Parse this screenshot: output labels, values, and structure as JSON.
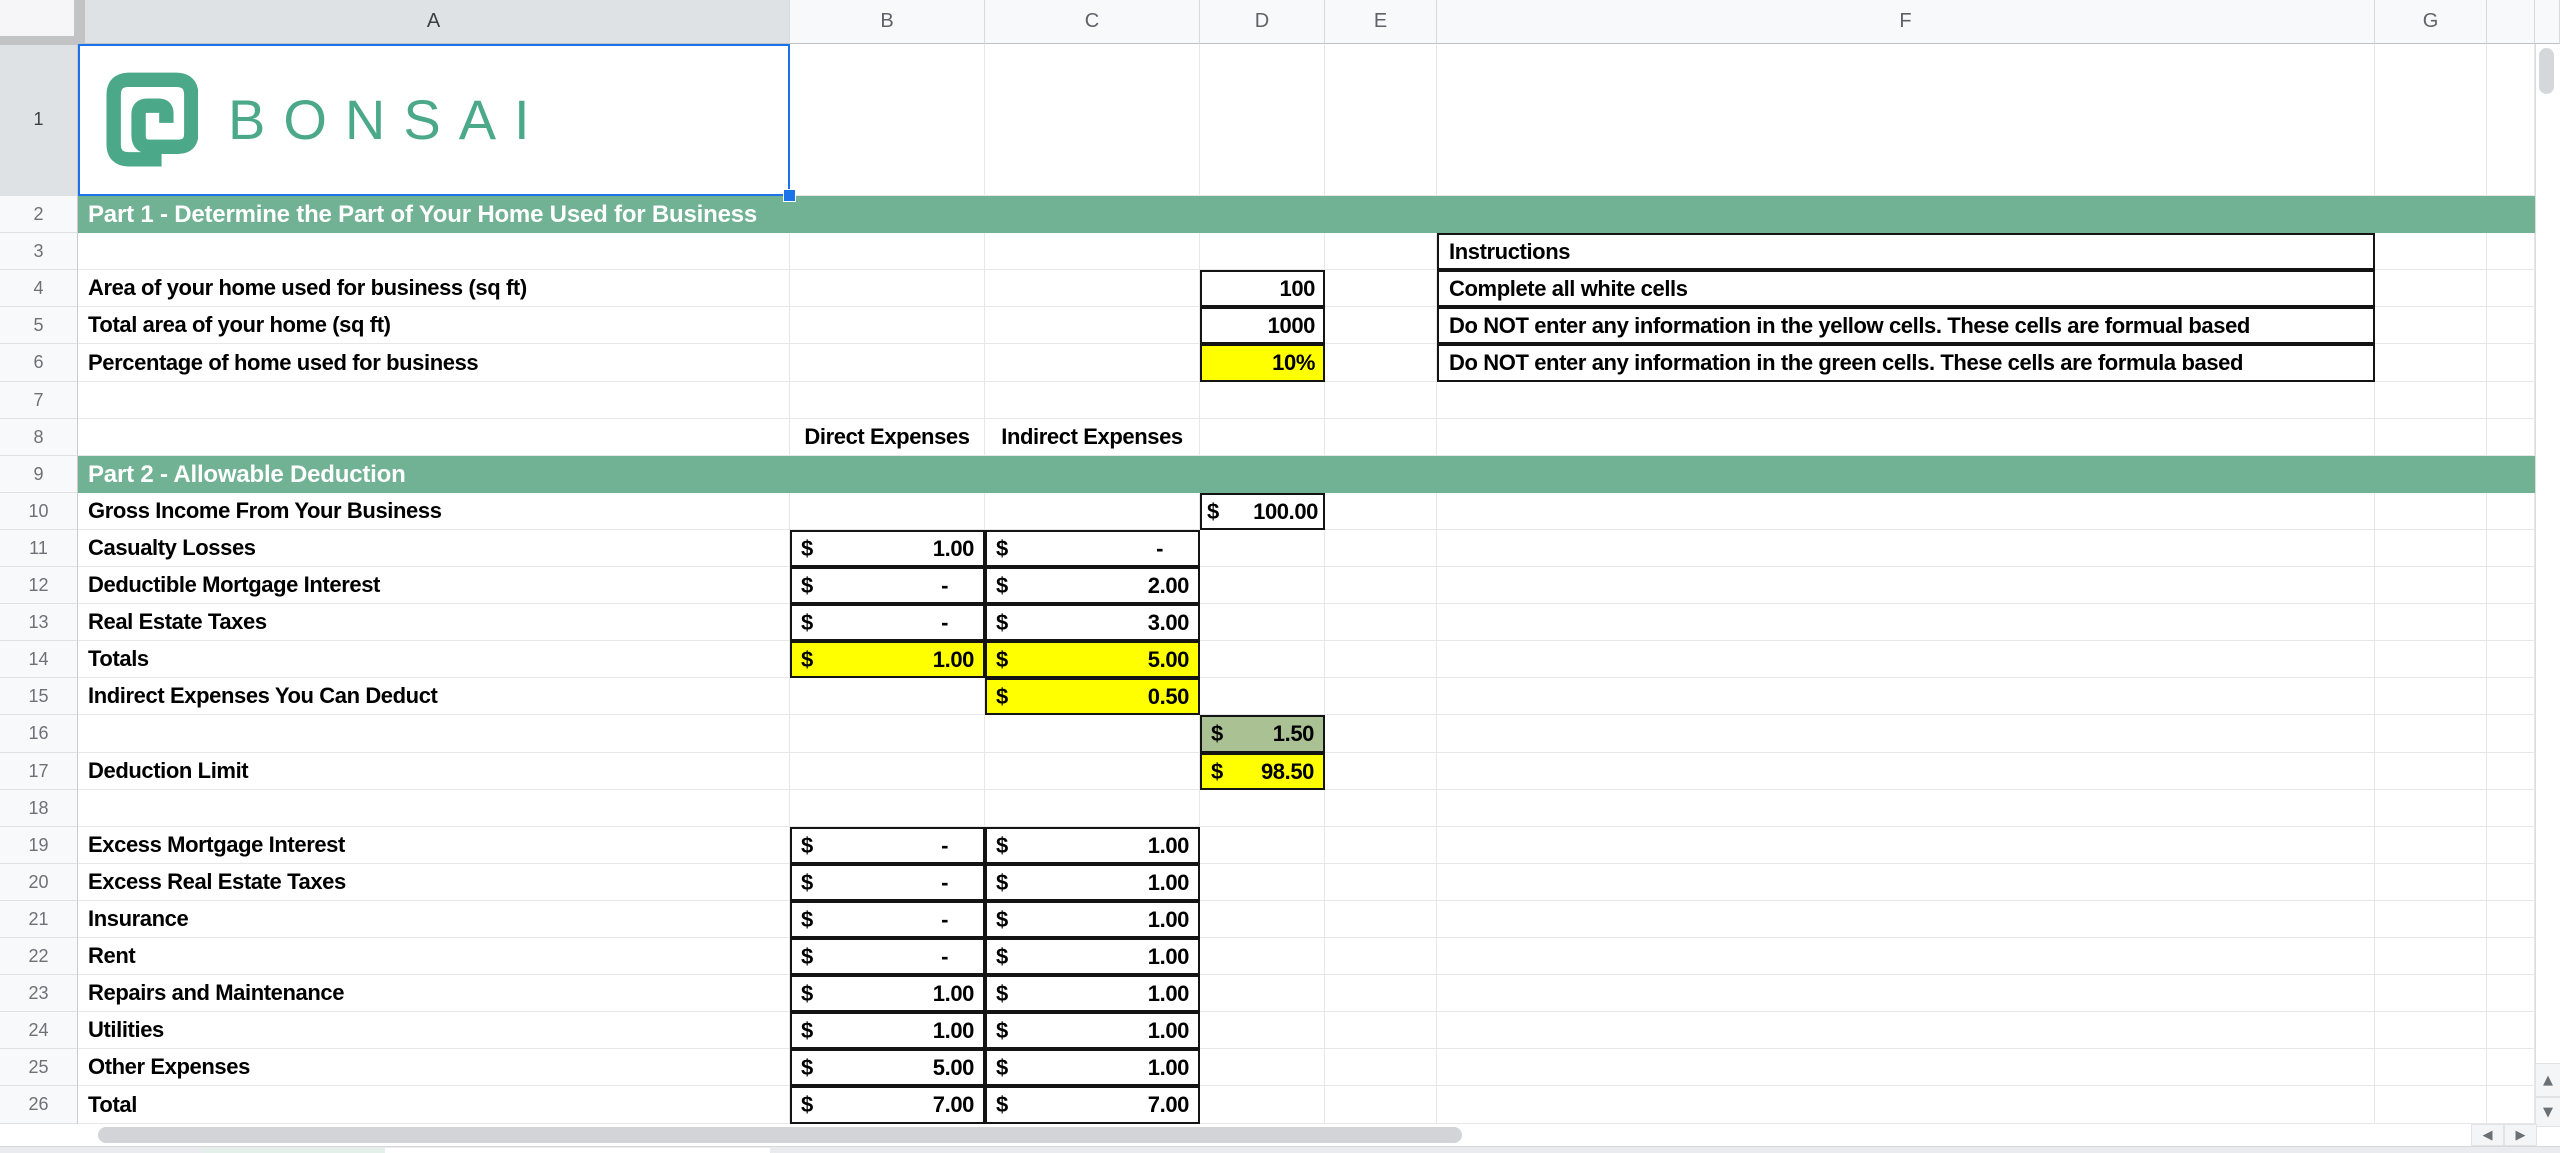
{
  "sheet": {
    "selected_cell": "A1",
    "column_headers": [
      "A",
      "B",
      "C",
      "D",
      "E",
      "F",
      "G",
      ""
    ],
    "brand": {
      "name": "BONSAI"
    },
    "rows": [
      {
        "n": "1",
        "cells": [
          {
            "col": "A",
            "type": "logo"
          }
        ]
      },
      {
        "n": "2",
        "band": "Part 1 - Determine the Part of Your Home Used for Business"
      },
      {
        "n": "3",
        "cells": [
          {
            "col": "F",
            "type": "lab",
            "box": true,
            "text": "Instructions"
          }
        ]
      },
      {
        "n": "4",
        "cells": [
          {
            "col": "A",
            "type": "lab",
            "text": "Area of your home used for business (sq ft)"
          },
          {
            "col": "D",
            "type": "num",
            "box": true,
            "text": "100"
          },
          {
            "col": "F",
            "type": "lab",
            "box": true,
            "text": "Complete all white cells"
          }
        ]
      },
      {
        "n": "5",
        "cells": [
          {
            "col": "A",
            "type": "lab",
            "text": "Total area of your home (sq ft)"
          },
          {
            "col": "D",
            "type": "num",
            "box": true,
            "text": "1000"
          },
          {
            "col": "F",
            "type": "lab",
            "box": true,
            "text": "Do NOT enter any information in the yellow cells. These cells are formual based"
          }
        ]
      },
      {
        "n": "6",
        "cells": [
          {
            "col": "A",
            "type": "lab",
            "text": "Percentage of home used for business"
          },
          {
            "col": "D",
            "type": "num",
            "box": true,
            "bg": "yellow",
            "text": "10%"
          },
          {
            "col": "F",
            "type": "lab",
            "box": true,
            "text": "Do NOT enter any information in the green cells. These cells are formula based"
          }
        ]
      },
      {
        "n": "7",
        "cells": []
      },
      {
        "n": "8",
        "cells": [
          {
            "col": "B",
            "type": "ctr",
            "text": "Direct Expenses"
          },
          {
            "col": "C",
            "type": "ctr",
            "text": "Indirect Expenses"
          }
        ]
      },
      {
        "n": "9",
        "band": "Part 2 - Allowable Deduction"
      },
      {
        "n": "10",
        "cells": [
          {
            "col": "A",
            "type": "lab",
            "text": "Gross Income From Your Business"
          },
          {
            "col": "D",
            "type": "money",
            "box": true,
            "cur": "$",
            "val": "100.00",
            "tight": true
          }
        ]
      },
      {
        "n": "11",
        "cells": [
          {
            "col": "A",
            "type": "lab",
            "text": "Casualty Losses"
          },
          {
            "col": "B",
            "type": "money",
            "box": true,
            "cur": "$",
            "val": "1.00"
          },
          {
            "col": "C",
            "type": "money",
            "box": true,
            "cur": "$",
            "val": "-"
          }
        ]
      },
      {
        "n": "12",
        "cells": [
          {
            "col": "A",
            "type": "lab",
            "text": "Deductible Mortgage Interest"
          },
          {
            "col": "B",
            "type": "money",
            "box": true,
            "cur": "$",
            "val": "-"
          },
          {
            "col": "C",
            "type": "money",
            "box": true,
            "cur": "$",
            "val": "2.00"
          }
        ]
      },
      {
        "n": "13",
        "cells": [
          {
            "col": "A",
            "type": "lab",
            "text": "Real Estate Taxes"
          },
          {
            "col": "B",
            "type": "money",
            "box": true,
            "cur": "$",
            "val": "-"
          },
          {
            "col": "C",
            "type": "money",
            "box": true,
            "cur": "$",
            "val": "3.00"
          }
        ]
      },
      {
        "n": "14",
        "cells": [
          {
            "col": "A",
            "type": "lab",
            "text": "Totals"
          },
          {
            "col": "B",
            "type": "money",
            "box": true,
            "bg": "yellow",
            "cur": "$",
            "val": "1.00"
          },
          {
            "col": "C",
            "type": "money",
            "box": true,
            "bg": "yellow",
            "cur": "$",
            "val": "5.00"
          }
        ]
      },
      {
        "n": "15",
        "cells": [
          {
            "col": "A",
            "type": "lab",
            "text": "Indirect Expenses You Can Deduct"
          },
          {
            "col": "C",
            "type": "money",
            "box": true,
            "bg": "yellow",
            "cur": "$",
            "val": "0.50"
          }
        ]
      },
      {
        "n": "16",
        "cells": [
          {
            "col": "D",
            "type": "money",
            "box": true,
            "bg": "sage",
            "cur": "$",
            "val": "1.50"
          }
        ]
      },
      {
        "n": "17",
        "cells": [
          {
            "col": "A",
            "type": "lab",
            "text": "Deduction Limit"
          },
          {
            "col": "D",
            "type": "money",
            "box": true,
            "bg": "yellow",
            "cur": "$",
            "val": "98.50"
          }
        ]
      },
      {
        "n": "18",
        "cells": []
      },
      {
        "n": "19",
        "cells": [
          {
            "col": "A",
            "type": "lab",
            "text": "Excess Mortgage Interest"
          },
          {
            "col": "B",
            "type": "money",
            "box": true,
            "cur": "$",
            "val": "-"
          },
          {
            "col": "C",
            "type": "money",
            "box": true,
            "cur": "$",
            "val": "1.00"
          }
        ]
      },
      {
        "n": "20",
        "cells": [
          {
            "col": "A",
            "type": "lab",
            "text": "Excess Real Estate Taxes"
          },
          {
            "col": "B",
            "type": "money",
            "box": true,
            "cur": "$",
            "val": "-"
          },
          {
            "col": "C",
            "type": "money",
            "box": true,
            "cur": "$",
            "val": "1.00"
          }
        ]
      },
      {
        "n": "21",
        "cells": [
          {
            "col": "A",
            "type": "lab",
            "text": "Insurance"
          },
          {
            "col": "B",
            "type": "money",
            "box": true,
            "cur": "$",
            "val": "-"
          },
          {
            "col": "C",
            "type": "money",
            "box": true,
            "cur": "$",
            "val": "1.00"
          }
        ]
      },
      {
        "n": "22",
        "cells": [
          {
            "col": "A",
            "type": "lab",
            "text": "Rent"
          },
          {
            "col": "B",
            "type": "money",
            "box": true,
            "cur": "$",
            "val": "-"
          },
          {
            "col": "C",
            "type": "money",
            "box": true,
            "cur": "$",
            "val": "1.00"
          }
        ]
      },
      {
        "n": "23",
        "cells": [
          {
            "col": "A",
            "type": "lab",
            "text": "Repairs and Maintenance"
          },
          {
            "col": "B",
            "type": "money",
            "box": true,
            "cur": "$",
            "val": "1.00"
          },
          {
            "col": "C",
            "type": "money",
            "box": true,
            "cur": "$",
            "val": "1.00"
          }
        ]
      },
      {
        "n": "24",
        "cells": [
          {
            "col": "A",
            "type": "lab",
            "text": "Utilities"
          },
          {
            "col": "B",
            "type": "money",
            "box": true,
            "cur": "$",
            "val": "1.00"
          },
          {
            "col": "C",
            "type": "money",
            "box": true,
            "cur": "$",
            "val": "1.00"
          }
        ]
      },
      {
        "n": "25",
        "cells": [
          {
            "col": "A",
            "type": "lab",
            "text": "Other Expenses"
          },
          {
            "col": "B",
            "type": "money",
            "box": true,
            "cur": "$",
            "val": "5.00"
          },
          {
            "col": "C",
            "type": "money",
            "box": true,
            "cur": "$",
            "val": "1.00"
          }
        ]
      },
      {
        "n": "26",
        "cells": [
          {
            "col": "A",
            "type": "lab",
            "text": "Total"
          },
          {
            "col": "B",
            "type": "money",
            "box": true,
            "cur": "$",
            "val": "7.00"
          },
          {
            "col": "C",
            "type": "money",
            "box": true,
            "cur": "$",
            "val": "7.00"
          }
        ]
      }
    ]
  },
  "colors": {
    "band_green": "#71B294",
    "cell_yellow": "#FFFF00",
    "cell_sage": "#A9C193",
    "brand_green": "#4BA98A",
    "selection_blue": "#1A73E8"
  },
  "icons": {
    "scroll_up": "▲",
    "scroll_down": "▼",
    "scroll_left": "◀",
    "scroll_right": "▶"
  }
}
